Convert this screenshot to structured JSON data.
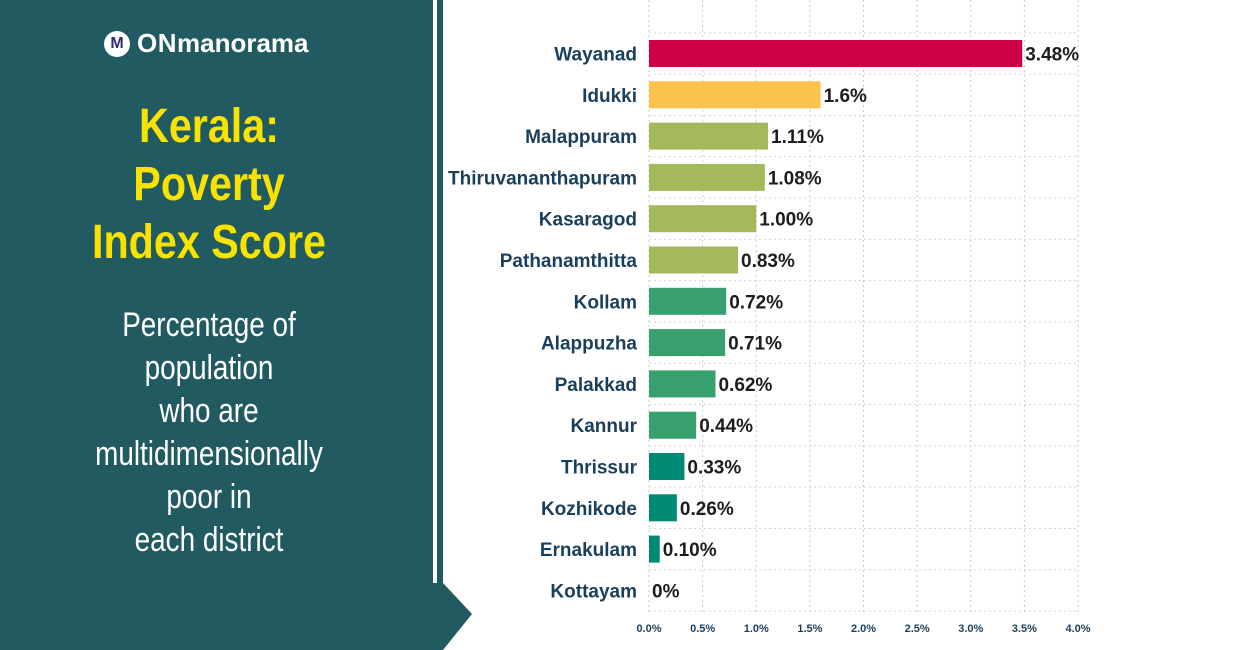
{
  "brand": {
    "logo_letter": "M",
    "prefix": "ON",
    "name": "manorama"
  },
  "panel": {
    "title_lines": [
      "Kerala:",
      "Poverty",
      "Index Score"
    ],
    "subtitle_lines": [
      "Percentage of",
      "population",
      "who are",
      "multidimensionally",
      "poor in",
      "each district"
    ]
  },
  "chart_data": {
    "type": "bar",
    "orientation": "horizontal",
    "categories": [
      "Wayanad",
      "Idukki",
      "Malappuram",
      "Thiruvananthapuram",
      "Kasaragod",
      "Pathanamthitta",
      "Kollam",
      "Alappuzha",
      "Palakkad",
      "Kannur",
      "Thrissur",
      "Kozhikode",
      "Ernakulam",
      "Kottayam"
    ],
    "values": [
      3.48,
      1.6,
      1.11,
      1.08,
      1.0,
      0.83,
      0.72,
      0.71,
      0.62,
      0.44,
      0.33,
      0.26,
      0.1,
      0
    ],
    "value_labels": [
      "3.48%",
      "1.6%",
      "1.11%",
      "1.08%",
      "1.00%",
      "0.83%",
      "0.72%",
      "0.71%",
      "0.62%",
      "0.44%",
      "0.33%",
      "0.26%",
      "0.10%",
      "0%"
    ],
    "bar_colors": [
      "#cc0044",
      "#fdc24b",
      "#a4b85c",
      "#a4b85c",
      "#a4b85c",
      "#a4b85c",
      "#38a06c",
      "#38a06c",
      "#38a06c",
      "#38a06c",
      "#008974",
      "#008974",
      "#008974",
      "#008974"
    ],
    "xticks": [
      "0.0%",
      "0.5%",
      "1.0%",
      "1.5%",
      "2.0%",
      "2.5%",
      "3.0%",
      "3.5%",
      "4.0%"
    ],
    "xlim": [
      0,
      4
    ],
    "grid": true
  },
  "colors": {
    "panel": "#215b61",
    "title": "#f7e200",
    "category_text": "#1a3f5c"
  }
}
